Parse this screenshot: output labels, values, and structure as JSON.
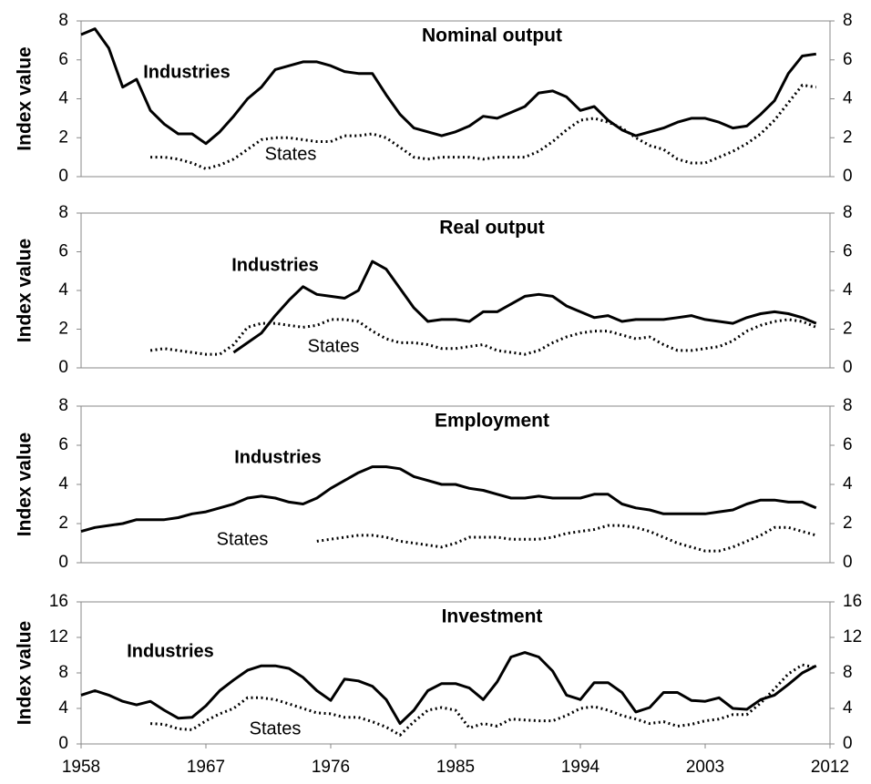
{
  "chart_data": [
    {
      "type": "line",
      "title": "Nominal output",
      "y_label": "Index value",
      "x": [
        1958,
        1959,
        1960,
        1961,
        1962,
        1963,
        1964,
        1965,
        1966,
        1967,
        1968,
        1969,
        1970,
        1971,
        1972,
        1973,
        1974,
        1975,
        1976,
        1977,
        1978,
        1979,
        1980,
        1981,
        1982,
        1983,
        1984,
        1985,
        1986,
        1987,
        1988,
        1989,
        1990,
        1991,
        1992,
        1993,
        1994,
        1995,
        1996,
        1997,
        1998,
        1999,
        2000,
        2001,
        2002,
        2003,
        2004,
        2005,
        2006,
        2007,
        2008,
        2009,
        2010,
        2011
      ],
      "xlim": [
        1958,
        2012
      ],
      "ylim": [
        0,
        8
      ],
      "yticks": [
        0,
        2,
        4,
        6,
        8
      ],
      "y2lim": [
        0,
        8
      ],
      "y2ticks": [
        0,
        2,
        4,
        6,
        8
      ],
      "series": [
        {
          "name": "Industries",
          "color": "#000000",
          "dash": "solid",
          "values": [
            7.3,
            7.6,
            6.6,
            4.6,
            5.0,
            3.4,
            2.7,
            2.2,
            2.2,
            1.7,
            2.3,
            3.1,
            4.0,
            4.6,
            5.5,
            5.7,
            5.9,
            5.9,
            5.7,
            5.4,
            5.3,
            5.3,
            4.2,
            3.2,
            2.5,
            2.3,
            2.1,
            2.3,
            2.6,
            3.1,
            3.0,
            3.3,
            3.6,
            4.3,
            4.4,
            4.1,
            3.4,
            3.6,
            2.9,
            2.4,
            2.1,
            2.3,
            2.5,
            2.8,
            3.0,
            3.0,
            2.8,
            2.5,
            2.6,
            3.2,
            3.9,
            5.3,
            6.2,
            6.3
          ]
        },
        {
          "name": "States",
          "color": "#000000",
          "dash": "dotted",
          "values": [
            null,
            null,
            null,
            null,
            null,
            1.0,
            1.0,
            0.9,
            0.7,
            0.4,
            0.6,
            0.9,
            1.4,
            1.9,
            2.0,
            2.0,
            1.9,
            1.8,
            1.8,
            2.1,
            2.1,
            2.2,
            2.0,
            1.5,
            1.0,
            0.9,
            1.0,
            1.0,
            1.0,
            0.9,
            1.0,
            1.0,
            1.0,
            1.3,
            1.8,
            2.4,
            2.9,
            3.0,
            2.8,
            2.5,
            2.0,
            1.6,
            1.4,
            0.9,
            0.7,
            0.7,
            1.0,
            1.3,
            1.7,
            2.2,
            2.9,
            3.8,
            4.7,
            4.6
          ]
        }
      ]
    },
    {
      "type": "line",
      "title": "Real output",
      "y_label": "Index value",
      "x": [
        1958,
        1959,
        1960,
        1961,
        1962,
        1963,
        1964,
        1965,
        1966,
        1967,
        1968,
        1969,
        1970,
        1971,
        1972,
        1973,
        1974,
        1975,
        1976,
        1977,
        1978,
        1979,
        1980,
        1981,
        1982,
        1983,
        1984,
        1985,
        1986,
        1987,
        1988,
        1989,
        1990,
        1991,
        1992,
        1993,
        1994,
        1995,
        1996,
        1997,
        1998,
        1999,
        2000,
        2001,
        2002,
        2003,
        2004,
        2005,
        2006,
        2007,
        2008,
        2009,
        2010,
        2011
      ],
      "xlim": [
        1958,
        2012
      ],
      "ylim": [
        0,
        8
      ],
      "yticks": [
        0,
        2,
        4,
        6,
        8
      ],
      "y2lim": [
        0,
        8
      ],
      "y2ticks": [
        0,
        2,
        4,
        6,
        8
      ],
      "series": [
        {
          "name": "Industries",
          "color": "#000000",
          "dash": "solid",
          "values": [
            null,
            null,
            null,
            null,
            null,
            null,
            null,
            null,
            null,
            null,
            null,
            0.8,
            1.3,
            1.8,
            2.7,
            3.5,
            4.2,
            3.8,
            3.7,
            3.6,
            4.0,
            5.5,
            5.1,
            4.1,
            3.1,
            2.4,
            2.5,
            2.5,
            2.4,
            2.9,
            2.9,
            3.3,
            3.7,
            3.8,
            3.7,
            3.2,
            2.9,
            2.6,
            2.7,
            2.4,
            2.5,
            2.5,
            2.5,
            2.6,
            2.7,
            2.5,
            2.4,
            2.3,
            2.6,
            2.8,
            2.9,
            2.8,
            2.6,
            2.3
          ]
        },
        {
          "name": "States",
          "color": "#000000",
          "dash": "dotted",
          "values": [
            null,
            null,
            null,
            null,
            null,
            0.9,
            1.0,
            0.9,
            0.8,
            0.7,
            0.7,
            1.2,
            2.1,
            2.3,
            2.3,
            2.2,
            2.1,
            2.2,
            2.5,
            2.5,
            2.4,
            1.9,
            1.5,
            1.3,
            1.3,
            1.2,
            1.0,
            1.0,
            1.1,
            1.2,
            0.9,
            0.8,
            0.7,
            0.9,
            1.3,
            1.6,
            1.8,
            1.9,
            1.9,
            1.7,
            1.5,
            1.6,
            1.2,
            0.9,
            0.9,
            1.0,
            1.1,
            1.4,
            1.9,
            2.2,
            2.4,
            2.5,
            2.4,
            2.1
          ]
        }
      ]
    },
    {
      "type": "line",
      "title": "Employment",
      "y_label": "Index value",
      "x": [
        1958,
        1959,
        1960,
        1961,
        1962,
        1963,
        1964,
        1965,
        1966,
        1967,
        1968,
        1969,
        1970,
        1971,
        1972,
        1973,
        1974,
        1975,
        1976,
        1977,
        1978,
        1979,
        1980,
        1981,
        1982,
        1983,
        1984,
        1985,
        1986,
        1987,
        1988,
        1989,
        1990,
        1991,
        1992,
        1993,
        1994,
        1995,
        1996,
        1997,
        1998,
        1999,
        2000,
        2001,
        2002,
        2003,
        2004,
        2005,
        2006,
        2007,
        2008,
        2009,
        2010,
        2011
      ],
      "xlim": [
        1958,
        2012
      ],
      "ylim": [
        0,
        8
      ],
      "yticks": [
        0,
        2,
        4,
        6,
        8
      ],
      "y2lim": [
        0,
        8
      ],
      "y2ticks": [
        0,
        2,
        4,
        6,
        8
      ],
      "series": [
        {
          "name": "Industries",
          "color": "#000000",
          "dash": "solid",
          "values": [
            1.6,
            1.8,
            1.9,
            2.0,
            2.2,
            2.2,
            2.2,
            2.3,
            2.5,
            2.6,
            2.8,
            3.0,
            3.3,
            3.4,
            3.3,
            3.1,
            3.0,
            3.3,
            3.8,
            4.2,
            4.6,
            4.9,
            4.9,
            4.8,
            4.4,
            4.2,
            4.0,
            4.0,
            3.8,
            3.7,
            3.5,
            3.3,
            3.3,
            3.4,
            3.3,
            3.3,
            3.3,
            3.5,
            3.5,
            3.0,
            2.8,
            2.7,
            2.5,
            2.5,
            2.5,
            2.5,
            2.6,
            2.7,
            3.0,
            3.2,
            3.2,
            3.1,
            3.1,
            2.8
          ]
        },
        {
          "name": "States",
          "color": "#000000",
          "dash": "dotted",
          "values": [
            null,
            null,
            null,
            null,
            null,
            null,
            null,
            null,
            null,
            null,
            null,
            null,
            null,
            null,
            null,
            null,
            null,
            1.1,
            1.2,
            1.3,
            1.4,
            1.4,
            1.3,
            1.1,
            1.0,
            0.9,
            0.8,
            1.0,
            1.3,
            1.3,
            1.3,
            1.2,
            1.2,
            1.2,
            1.3,
            1.5,
            1.6,
            1.7,
            1.9,
            1.9,
            1.8,
            1.6,
            1.3,
            1.0,
            0.8,
            0.6,
            0.6,
            0.8,
            1.1,
            1.4,
            1.8,
            1.8,
            1.6,
            1.4
          ]
        }
      ]
    },
    {
      "type": "line",
      "title": "Investment",
      "y_label": "Index value",
      "x": [
        1958,
        1959,
        1960,
        1961,
        1962,
        1963,
        1964,
        1965,
        1966,
        1967,
        1968,
        1969,
        1970,
        1971,
        1972,
        1973,
        1974,
        1975,
        1976,
        1977,
        1978,
        1979,
        1980,
        1981,
        1982,
        1983,
        1984,
        1985,
        1986,
        1987,
        1988,
        1989,
        1990,
        1991,
        1992,
        1993,
        1994,
        1995,
        1996,
        1997,
        1998,
        1999,
        2000,
        2001,
        2002,
        2003,
        2004,
        2005,
        2006,
        2007,
        2008,
        2009,
        2010,
        2011
      ],
      "xlim": [
        1958,
        2012
      ],
      "xticks": [
        1958,
        1967,
        1976,
        1985,
        1994,
        2003,
        2012
      ],
      "ylim": [
        0,
        16
      ],
      "yticks": [
        0,
        4,
        8,
        12,
        16
      ],
      "y2lim": [
        0,
        16
      ],
      "y2ticks": [
        0,
        4,
        8,
        12,
        16
      ],
      "series": [
        {
          "name": "Industries",
          "color": "#000000",
          "dash": "solid",
          "values": [
            5.5,
            6.0,
            5.5,
            4.8,
            4.4,
            4.8,
            3.8,
            2.9,
            3.0,
            4.3,
            6.0,
            7.2,
            8.3,
            8.8,
            8.8,
            8.5,
            7.5,
            6.0,
            4.9,
            7.3,
            7.1,
            6.5,
            5.0,
            2.3,
            3.8,
            6.0,
            6.8,
            6.8,
            6.3,
            5.0,
            7.0,
            9.8,
            10.3,
            9.8,
            8.2,
            5.5,
            5.0,
            6.9,
            6.9,
            5.8,
            3.6,
            4.1,
            5.8,
            5.8,
            4.9,
            4.8,
            5.2,
            4.0,
            3.9,
            5.0,
            5.5,
            6.7,
            8.0,
            8.8
          ]
        },
        {
          "name": "States",
          "color": "#000000",
          "dash": "dotted",
          "values": [
            null,
            null,
            null,
            null,
            null,
            2.3,
            2.2,
            1.7,
            1.6,
            2.6,
            3.4,
            4.0,
            5.2,
            5.2,
            5.0,
            4.5,
            4.0,
            3.5,
            3.4,
            3.0,
            3.0,
            2.5,
            1.9,
            1.0,
            2.5,
            3.8,
            4.1,
            3.8,
            1.8,
            2.3,
            2.0,
            2.8,
            2.7,
            2.6,
            2.6,
            3.2,
            4.0,
            4.2,
            3.8,
            3.2,
            2.8,
            2.3,
            2.5,
            2.0,
            2.2,
            2.6,
            2.8,
            3.3,
            3.3,
            4.6,
            6.2,
            7.9,
            8.9,
            8.6
          ]
        }
      ]
    }
  ]
}
